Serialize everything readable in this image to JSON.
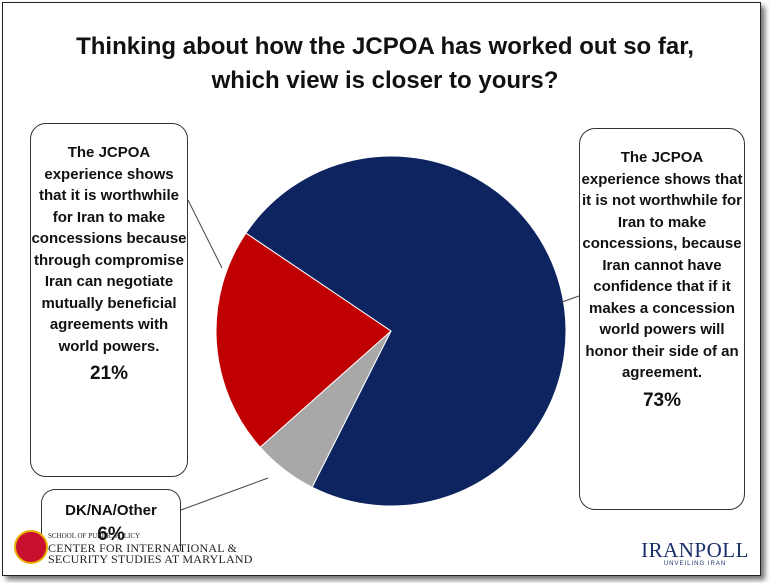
{
  "chart_data": {
    "type": "pie",
    "title": "Thinking about how the JCPOA has worked out so far, which view is closer to yours?",
    "slices": [
      {
        "label": "The JCPOA experience shows that it is not worthwhile for Iran to make concessions, because Iran cannot have confidence that if it makes a concession world powers will honor their side of an agreement.",
        "value": 73,
        "value_label": "73%",
        "color": "#0d2460"
      },
      {
        "label": "DK/NA/Other",
        "value": 6,
        "value_label": "6%",
        "color": "#a8a8a8"
      },
      {
        "label": "The JCPOA experience shows that it is worthwhile for Iran to make concessions because through compromise Iran can negotiate mutually beneficial agreements with world powers.",
        "value": 21,
        "value_label": "21%",
        "color": "#c00000"
      }
    ]
  },
  "footer": {
    "org_small": "SCHOOL OF PUBLIC POLICY",
    "org_line1": "CENTER FOR INTERNATIONAL &",
    "org_line2": "SECURITY STUDIES AT MARYLAND",
    "brand": "IRANPOLL",
    "tagline": "UNVEILING IRAN"
  }
}
